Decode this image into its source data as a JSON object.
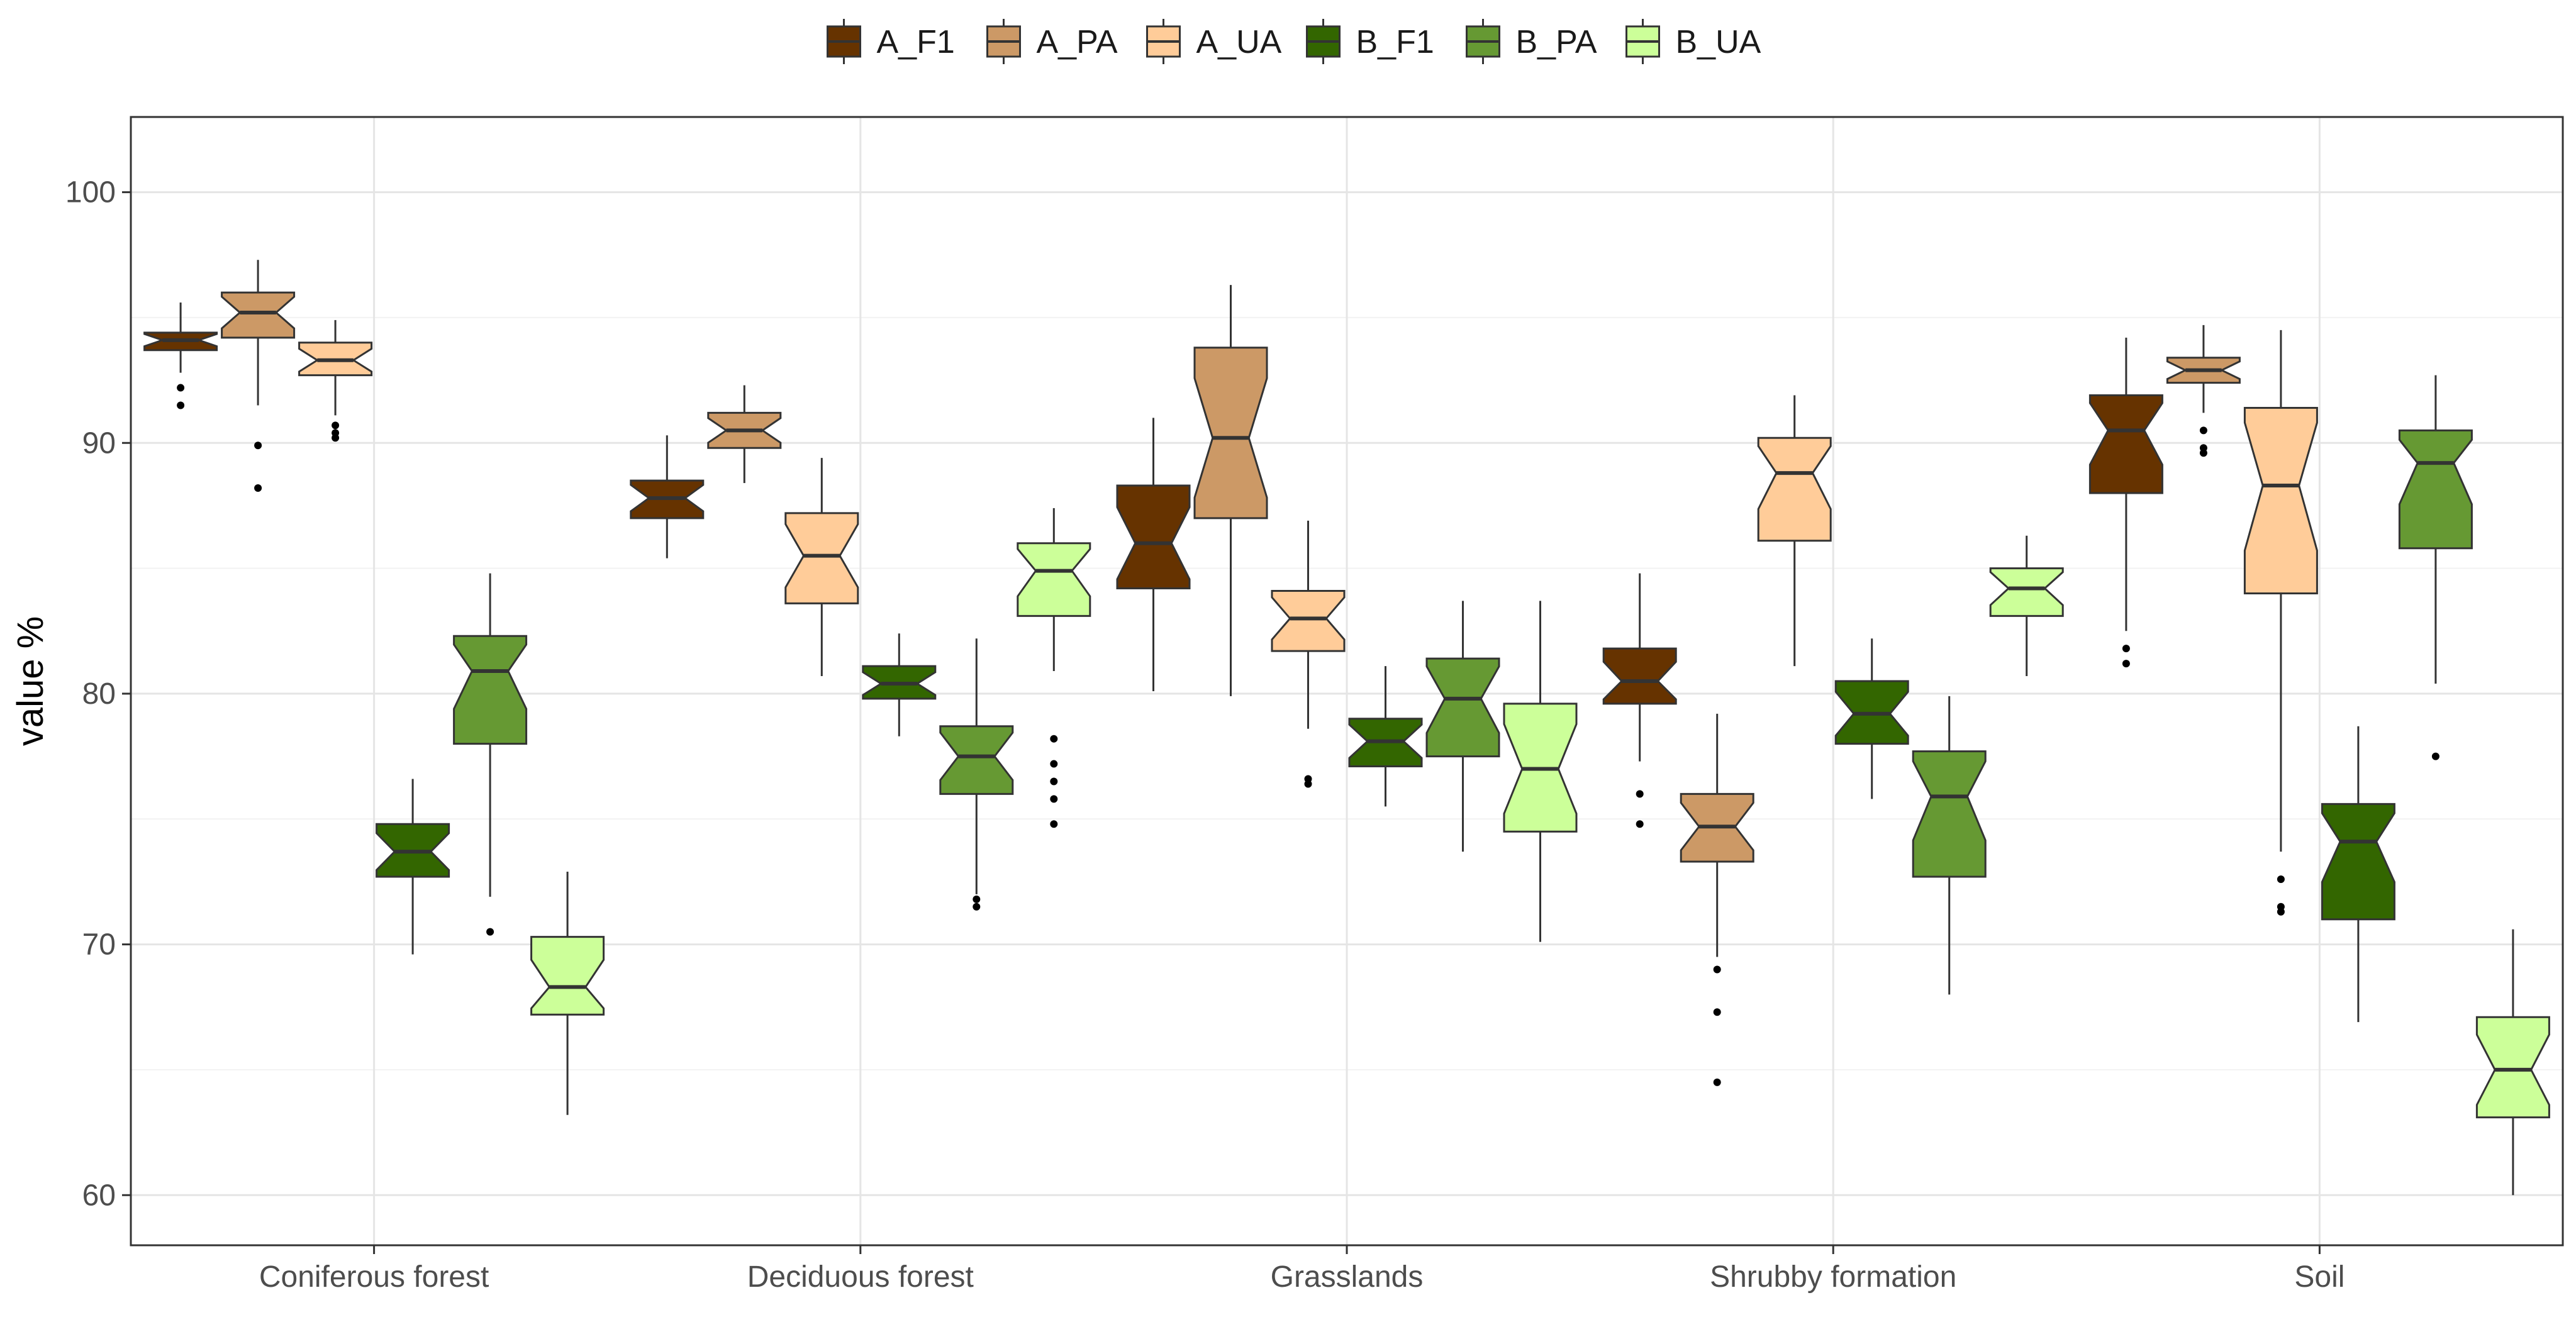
{
  "chart_data": {
    "type": "boxplot",
    "notched": true,
    "title": "",
    "xlabel": "",
    "ylabel": "value %",
    "ylim": [
      58,
      103
    ],
    "yticks": [
      60,
      70,
      80,
      90,
      100
    ],
    "grid": true,
    "legend_position": "top",
    "categories": [
      "Coniferous forest",
      "Deciduous forest",
      "Grasslands",
      "Shrubby formation",
      "Soil"
    ],
    "series": [
      {
        "name": "A_F1",
        "color": "#663300",
        "boxes": [
          {
            "whisker_low": 92.8,
            "q1": 93.7,
            "median": 94.1,
            "q3": 94.4,
            "whisker_high": 95.6,
            "outliers": [
              92.2,
              91.5
            ]
          },
          {
            "whisker_low": 85.4,
            "q1": 87.0,
            "median": 87.8,
            "q3": 88.5,
            "whisker_high": 90.3,
            "outliers": []
          },
          {
            "whisker_low": 80.1,
            "q1": 84.2,
            "median": 86.0,
            "q3": 88.3,
            "whisker_high": 91.0,
            "outliers": []
          },
          {
            "whisker_low": 77.3,
            "q1": 79.6,
            "median": 80.5,
            "q3": 81.8,
            "whisker_high": 84.8,
            "outliers": [
              76.0,
              74.8
            ]
          },
          {
            "whisker_low": 82.5,
            "q1": 88.0,
            "median": 90.5,
            "q3": 91.9,
            "whisker_high": 94.2,
            "outliers": [
              81.8,
              81.2
            ]
          }
        ]
      },
      {
        "name": "A_PA",
        "color": "#CC9966",
        "boxes": [
          {
            "whisker_low": 91.5,
            "q1": 94.2,
            "median": 95.2,
            "q3": 96.0,
            "whisker_high": 97.3,
            "outliers": [
              89.9,
              88.2
            ]
          },
          {
            "whisker_low": 88.4,
            "q1": 89.8,
            "median": 90.5,
            "q3": 91.2,
            "whisker_high": 92.3,
            "outliers": []
          },
          {
            "whisker_low": 79.9,
            "q1": 87.0,
            "median": 90.2,
            "q3": 93.8,
            "whisker_high": 96.3,
            "outliers": []
          },
          {
            "whisker_low": 69.5,
            "q1": 73.3,
            "median": 74.7,
            "q3": 76.0,
            "whisker_high": 79.2,
            "outliers": [
              69.0,
              67.3,
              64.5
            ]
          },
          {
            "whisker_low": 91.2,
            "q1": 92.4,
            "median": 92.9,
            "q3": 93.4,
            "whisker_high": 94.7,
            "outliers": [
              90.5,
              89.8,
              89.6
            ]
          }
        ]
      },
      {
        "name": "A_UA",
        "color": "#FFCC99",
        "boxes": [
          {
            "whisker_low": 91.1,
            "q1": 92.7,
            "median": 93.3,
            "q3": 94.0,
            "whisker_high": 94.9,
            "outliers": [
              90.7,
              90.4,
              90.2
            ]
          },
          {
            "whisker_low": 80.7,
            "q1": 83.6,
            "median": 85.5,
            "q3": 87.2,
            "whisker_high": 89.4,
            "outliers": []
          },
          {
            "whisker_low": 78.6,
            "q1": 81.7,
            "median": 83.0,
            "q3": 84.1,
            "whisker_high": 86.9,
            "outliers": [
              76.6,
              76.4
            ]
          },
          {
            "whisker_low": 81.1,
            "q1": 86.1,
            "median": 88.8,
            "q3": 90.2,
            "whisker_high": 91.9,
            "outliers": []
          },
          {
            "whisker_low": 73.7,
            "q1": 84.0,
            "median": 88.3,
            "q3": 91.4,
            "whisker_high": 94.5,
            "outliers": [
              72.6,
              71.5,
              71.3
            ]
          }
        ]
      },
      {
        "name": "B_F1",
        "color": "#336600",
        "boxes": [
          {
            "whisker_low": 69.6,
            "q1": 72.7,
            "median": 73.7,
            "q3": 74.8,
            "whisker_high": 76.6,
            "outliers": []
          },
          {
            "whisker_low": 78.3,
            "q1": 79.8,
            "median": 80.4,
            "q3": 81.1,
            "whisker_high": 82.4,
            "outliers": []
          },
          {
            "whisker_low": 75.5,
            "q1": 77.1,
            "median": 78.1,
            "q3": 79.0,
            "whisker_high": 81.1,
            "outliers": []
          },
          {
            "whisker_low": 75.8,
            "q1": 78.0,
            "median": 79.2,
            "q3": 80.5,
            "whisker_high": 82.2,
            "outliers": []
          },
          {
            "whisker_low": 66.9,
            "q1": 71.0,
            "median": 74.1,
            "q3": 75.6,
            "whisker_high": 78.7,
            "outliers": []
          }
        ]
      },
      {
        "name": "B_PA",
        "color": "#669933",
        "boxes": [
          {
            "whisker_low": 71.9,
            "q1": 78.0,
            "median": 80.9,
            "q3": 82.3,
            "whisker_high": 84.8,
            "outliers": [
              70.5
            ]
          },
          {
            "whisker_low": 72.0,
            "q1": 76.0,
            "median": 77.5,
            "q3": 78.7,
            "whisker_high": 82.2,
            "outliers": [
              71.8,
              71.5
            ]
          },
          {
            "whisker_low": 73.7,
            "q1": 77.5,
            "median": 79.8,
            "q3": 81.4,
            "whisker_high": 83.7,
            "outliers": []
          },
          {
            "whisker_low": 68.0,
            "q1": 72.7,
            "median": 75.9,
            "q3": 77.7,
            "whisker_high": 79.9,
            "outliers": []
          },
          {
            "whisker_low": 80.4,
            "q1": 85.8,
            "median": 89.2,
            "q3": 90.5,
            "whisker_high": 92.7,
            "outliers": [
              77.5
            ]
          }
        ]
      },
      {
        "name": "B_UA",
        "color": "#CCFF99",
        "boxes": [
          {
            "whisker_low": 63.2,
            "q1": 67.2,
            "median": 68.3,
            "q3": 70.3,
            "whisker_high": 72.9,
            "outliers": []
          },
          {
            "whisker_low": 80.9,
            "q1": 83.1,
            "median": 84.9,
            "q3": 86.0,
            "whisker_high": 87.4,
            "outliers": [
              78.2,
              77.2,
              76.5,
              75.8,
              74.8
            ]
          },
          {
            "whisker_low": 70.1,
            "q1": 74.5,
            "median": 77.0,
            "q3": 79.6,
            "whisker_high": 83.7,
            "outliers": []
          },
          {
            "whisker_low": 80.7,
            "q1": 83.1,
            "median": 84.2,
            "q3": 85.0,
            "whisker_high": 86.3,
            "outliers": []
          },
          {
            "whisker_low": 60.0,
            "q1": 63.1,
            "median": 65.0,
            "q3": 67.1,
            "whisker_high": 70.6,
            "outliers": []
          }
        ]
      }
    ]
  }
}
